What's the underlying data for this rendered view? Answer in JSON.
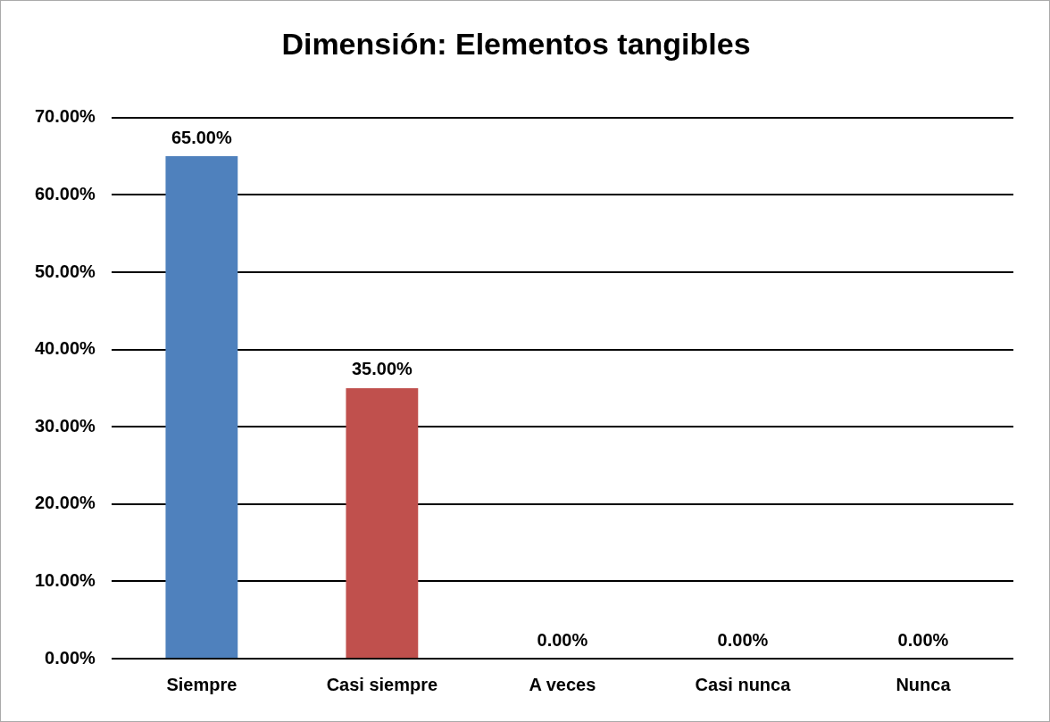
{
  "chart_data": {
    "type": "bar",
    "title": "Dimensión: Elementos tangibles",
    "categories": [
      "Siempre",
      "Casi siempre",
      "A veces",
      "Casi nunca",
      "Nunca"
    ],
    "values": [
      65,
      35,
      0,
      0,
      0
    ],
    "colors": [
      "#4f81bd",
      "#c0504d",
      "#00843d",
      "#c8c800",
      "#c87533"
    ],
    "value_labels": [
      "65.00%",
      "35.00%",
      "0.00%",
      "0.00%",
      "0.00%"
    ],
    "ylim": [
      0,
      70
    ],
    "yticks": [
      {
        "value": 0,
        "label": "0.00%"
      },
      {
        "value": 10,
        "label": "10.00%"
      },
      {
        "value": 20,
        "label": "20.00%"
      },
      {
        "value": 30,
        "label": "30.00%"
      },
      {
        "value": 40,
        "label": "40.00%"
      },
      {
        "value": 50,
        "label": "50.00%"
      },
      {
        "value": 60,
        "label": "60.00%"
      },
      {
        "value": 70,
        "label": "70.00%"
      }
    ],
    "grid": "y",
    "legend": false
  }
}
